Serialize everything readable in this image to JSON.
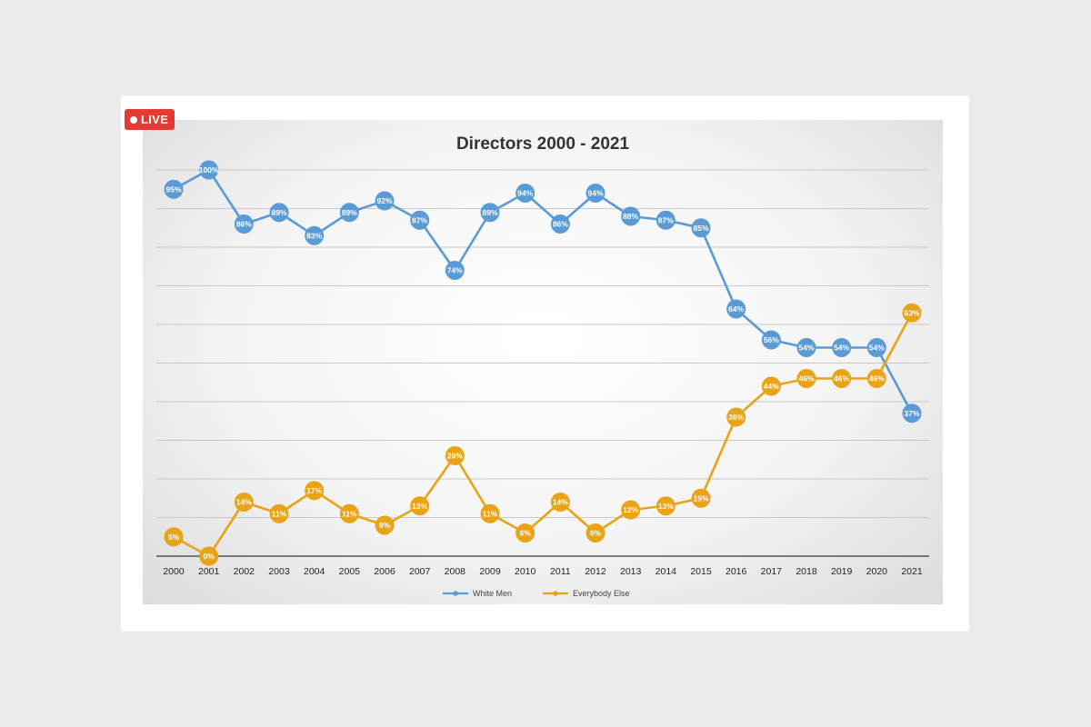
{
  "badge": {
    "label": "LIVE"
  },
  "chart_data": {
    "type": "line",
    "title": "Directors 2000 - 2021",
    "xlabel": "",
    "ylabel": "",
    "ylim": [
      0,
      100
    ],
    "grid": true,
    "legend_position": "bottom",
    "categories": [
      "2000",
      "2001",
      "2002",
      "2003",
      "2004",
      "2005",
      "2006",
      "2007",
      "2008",
      "2009",
      "2010",
      "2011",
      "2012",
      "2013",
      "2014",
      "2015",
      "2016",
      "2017",
      "2018",
      "2019",
      "2020",
      "2021"
    ],
    "series": [
      {
        "name": "White Men",
        "color": "#5b9bd5",
        "values": [
          95,
          100,
          86,
          89,
          83,
          89,
          92,
          87,
          74,
          89,
          94,
          86,
          94,
          88,
          87,
          85,
          64,
          56,
          54,
          54,
          54,
          37
        ],
        "labels": [
          "95%",
          "100%",
          "86%",
          "89%",
          "83%",
          "89%",
          "92%",
          "87%",
          "74%",
          "89%",
          "94%",
          "86%",
          "94%",
          "88%",
          "87%",
          "85%",
          "64%",
          "56%",
          "54%",
          "54%",
          "54%",
          "37%"
        ]
      },
      {
        "name": "Everybody Else",
        "color": "#e8a317",
        "values": [
          5,
          0,
          14,
          11,
          17,
          11,
          8,
          13,
          26,
          11,
          6,
          14,
          6,
          12,
          13,
          15,
          36,
          44,
          46,
          46,
          46,
          63
        ],
        "labels": [
          "5%",
          "0%",
          "14%",
          "11%",
          "17%",
          "11%",
          "8%",
          "13%",
          "26%",
          "11%",
          "6%",
          "14%",
          "6%",
          "12%",
          "13%",
          "15%",
          "36%",
          "44%",
          "46%",
          "46%",
          "46%",
          "63%"
        ]
      }
    ]
  }
}
